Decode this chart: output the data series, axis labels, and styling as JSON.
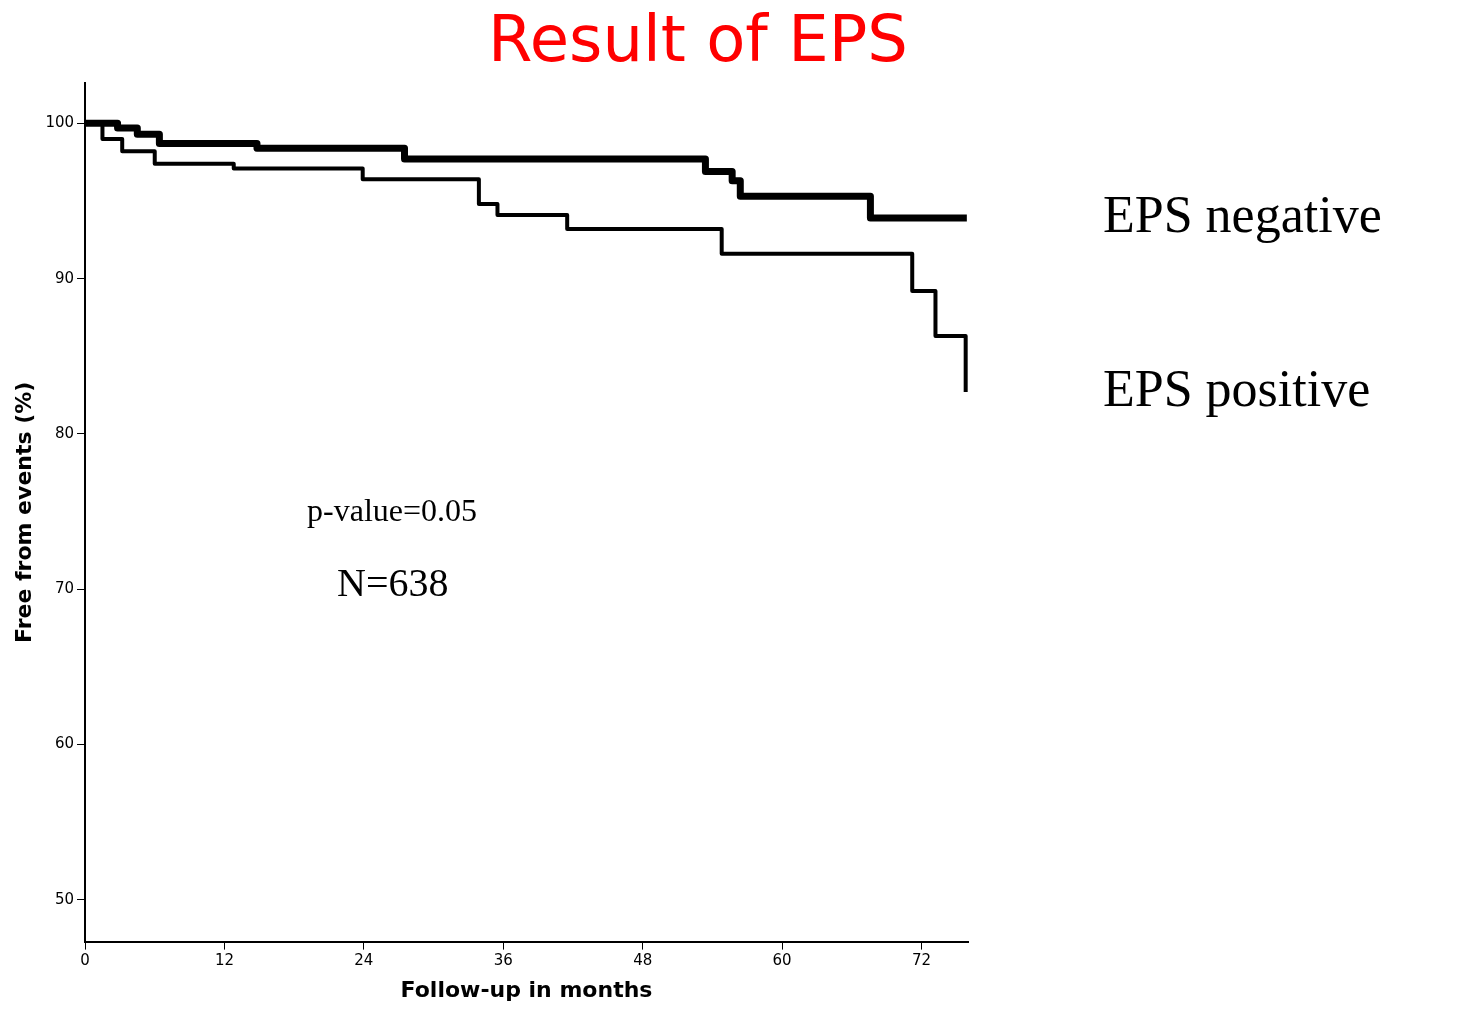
{
  "chart_data": {
    "type": "step",
    "title": "Result of EPS",
    "xlabel": "Follow-up in months",
    "ylabel": "Free from events (%)",
    "xlim": [
      0,
      76
    ],
    "ylim": [
      47.3,
      102.6
    ],
    "xticks": [
      0,
      12,
      24,
      36,
      48,
      60,
      72
    ],
    "yticks": [
      50,
      60,
      70,
      80,
      90,
      100
    ],
    "grid": false,
    "legend": false,
    "marker": "none",
    "line_style": "solid",
    "series": [
      {
        "name": "EPS negative",
        "color": "#000000",
        "x": [
          0,
          2.8,
          4.5,
          6.4,
          14.8,
          27.5,
          53.4,
          55.7,
          56.4,
          67.6,
          75.9
        ],
        "values": [
          100,
          99.7,
          99.3,
          98.7,
          98.4,
          97.7,
          96.9,
          96.3,
          95.3,
          93.9,
          93.9
        ]
      },
      {
        "name": "EPS positive",
        "color": "#000000",
        "x": [
          0,
          1.5,
          3.2,
          6,
          12.8,
          23.9,
          33.9,
          35.5,
          41.5,
          54.8,
          71.2,
          73.2,
          75.8,
          75.8
        ],
        "values": [
          100,
          99,
          98.2,
          97.4,
          97.1,
          96.4,
          94.8,
          94.1,
          93.2,
          91.6,
          89.2,
          86.3,
          86.3,
          82.7
        ]
      }
    ],
    "annotations": [
      "p-value=0.05",
      "N=638"
    ]
  }
}
